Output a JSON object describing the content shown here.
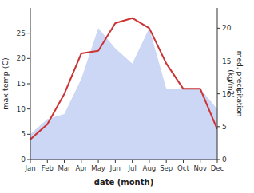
{
  "chart_data": {
    "type": "line",
    "categories": [
      "Jan",
      "Feb",
      "Mar",
      "Apr",
      "May",
      "Jun",
      "Jul",
      "Aug",
      "Sep",
      "Oct",
      "Nov",
      "Dec"
    ],
    "series": [
      {
        "type": "area",
        "color": "#aabbee",
        "values": [
          5,
          8,
          9,
          16,
          26,
          22,
          19,
          26,
          14,
          14,
          14,
          10
        ]
      },
      {
        "type": "line",
        "color": "#cc3333",
        "values": [
          4,
          7,
          13,
          21,
          21.5,
          27,
          28,
          26,
          19,
          14,
          14,
          6
        ]
      }
    ],
    "x_label": "date (month)",
    "y_label": "max temp (C)",
    "y2_label": "med. precipitation\n(kg/m2)",
    "ylim": [
      0,
      30
    ],
    "yticks": [
      0,
      5,
      10,
      15,
      20,
      25
    ],
    "y2lim": [
      0,
      23.077
    ],
    "y2ticks": [
      0,
      5,
      10,
      15,
      20
    ],
    "grid": false
  }
}
